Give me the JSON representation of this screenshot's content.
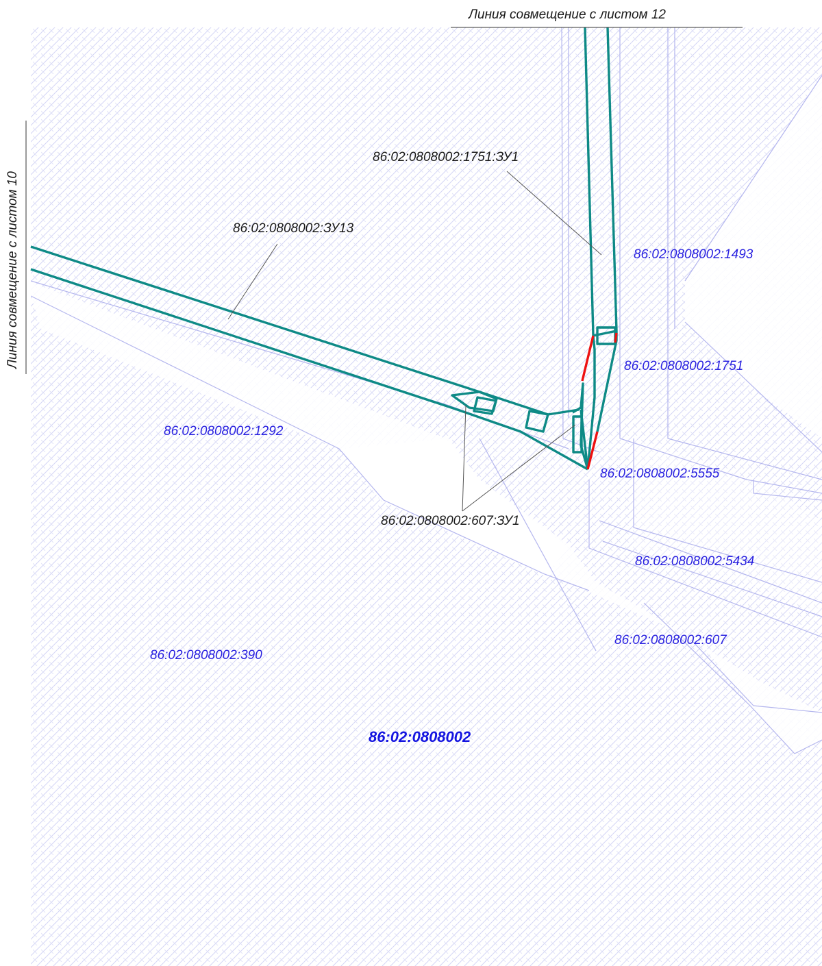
{
  "sheet_links": {
    "top": "Линия совмещение с листом 12",
    "left": "Линия совмещение с листом 10"
  },
  "callouts": {
    "zu13": "86:02:0808002:ЗУ13",
    "zu1751": "86:02:0808002:1751:ЗУ1",
    "zu607": "86:02:0808002:607:ЗУ1"
  },
  "parcels": {
    "p1493": "86:02:0808002:1493",
    "p1751": "86:02:0808002:1751",
    "p1292": "86:02:0808002:1292",
    "p5555": "86:02:0808002:5555",
    "p5434": "86:02:0808002:5434",
    "p607": "86:02:0808002:607",
    "p390": "86:02:0808002:390"
  },
  "quarter": "86:02:0808002",
  "colors": {
    "designed_boundary": "#0e8a86",
    "changed_boundary": "#ee1111",
    "existing_boundary": "#b8b8f0",
    "label_blue": "#2a22e0",
    "hatch": "#d0d2f4"
  }
}
